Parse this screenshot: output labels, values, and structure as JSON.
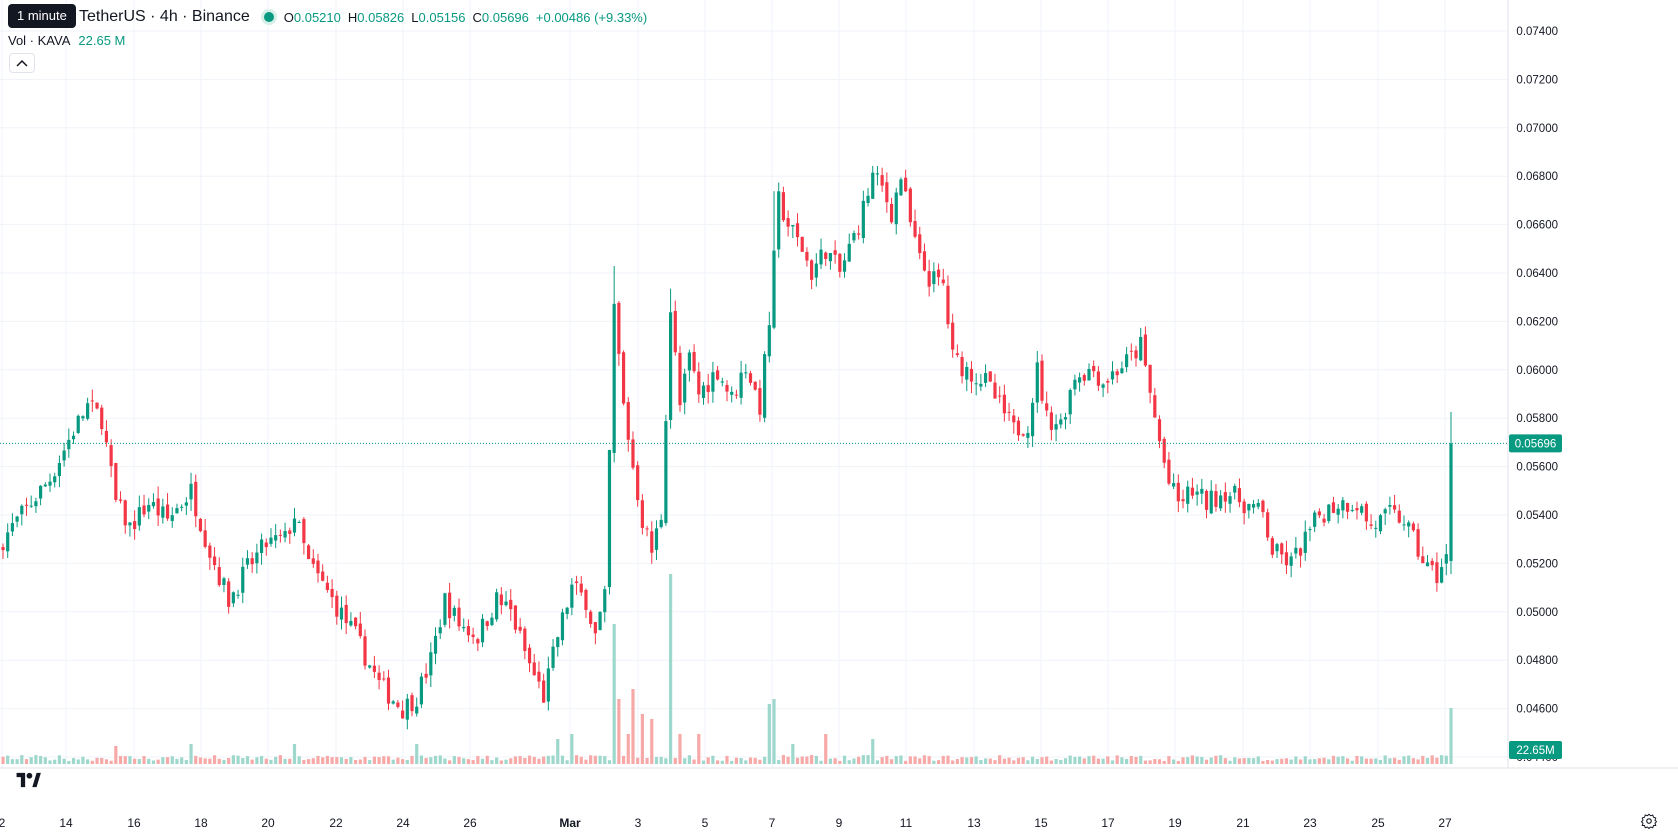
{
  "tooltip": "1 minute",
  "header": {
    "symbol": "TetherUS · 4h · Binance",
    "o_label": "O",
    "o": "0.05210",
    "h_label": "H",
    "h": "0.05826",
    "l_label": "L",
    "l": "0.05156",
    "c_label": "C",
    "c": "0.05696",
    "change": "+0.00486 (+9.33%)",
    "status_color": "#089981"
  },
  "volume_legend": {
    "label": "Vol · KAVA",
    "value": "22.65 M"
  },
  "colors": {
    "up": "#089981",
    "down": "#F23645",
    "up_vol": "#9ED7CC",
    "down_vol": "#F7A9A7",
    "grid": "#F0F3FA"
  },
  "chart_data": {
    "type": "candlestick",
    "interval": "4h",
    "price_axis": {
      "ticks": [
        "0.07400",
        "0.07200",
        "0.07000",
        "0.06800",
        "0.06600",
        "0.06400",
        "0.06200",
        "0.06000",
        "0.05800",
        "0.05600",
        "0.05400",
        "0.05200",
        "0.05000",
        "0.04800",
        "0.04600",
        "0.04400"
      ],
      "ylim": [
        0.0435,
        0.0741
      ],
      "last_price": "0.05696",
      "last_volume": "22.65M"
    },
    "x_axis": {
      "ticks": [
        "2",
        "14",
        "16",
        "18",
        "20",
        "22",
        "24",
        "26",
        "Mar",
        "3",
        "5",
        "7",
        "9",
        "11",
        "13",
        "15",
        "17",
        "19",
        "21",
        "23",
        "25",
        "27"
      ]
    },
    "price_path": [
      [
        0,
        0.053
      ],
      [
        6,
        0.0545
      ],
      [
        10,
        0.0555
      ],
      [
        15,
        0.0575
      ],
      [
        18,
        0.0585
      ],
      [
        21,
        0.058
      ],
      [
        24,
        0.0545
      ],
      [
        27,
        0.0535
      ],
      [
        31,
        0.0545
      ],
      [
        35,
        0.0538
      ],
      [
        40,
        0.055
      ],
      [
        44,
        0.0525
      ],
      [
        48,
        0.0505
      ],
      [
        52,
        0.0518
      ],
      [
        56,
        0.0528
      ],
      [
        60,
        0.053
      ],
      [
        62,
        0.054
      ],
      [
        65,
        0.052
      ],
      [
        70,
        0.0505
      ],
      [
        75,
        0.049
      ],
      [
        80,
        0.047
      ],
      [
        85,
        0.046
      ],
      [
        88,
        0.0465
      ],
      [
        91,
        0.048
      ],
      [
        94,
        0.0505
      ],
      [
        97,
        0.0495
      ],
      [
        101,
        0.049
      ],
      [
        105,
        0.0505
      ],
      [
        108,
        0.05
      ],
      [
        112,
        0.0478
      ],
      [
        115,
        0.0465
      ],
      [
        118,
        0.049
      ],
      [
        121,
        0.051
      ],
      [
        124,
        0.0505
      ],
      [
        126,
        0.049
      ],
      [
        128,
        0.0505
      ],
      [
        130,
        0.0625
      ],
      [
        132,
        0.0585
      ],
      [
        134,
        0.056
      ],
      [
        136,
        0.0538
      ],
      [
        138,
        0.0525
      ],
      [
        140,
        0.054
      ],
      [
        142,
        0.0625
      ],
      [
        144,
        0.0585
      ],
      [
        146,
        0.0605
      ],
      [
        148,
        0.059
      ],
      [
        152,
        0.06
      ],
      [
        155,
        0.0588
      ],
      [
        158,
        0.0602
      ],
      [
        161,
        0.0585
      ],
      [
        163,
        0.062
      ],
      [
        165,
        0.067
      ],
      [
        167,
        0.066
      ],
      [
        170,
        0.065
      ],
      [
        172,
        0.064
      ],
      [
        175,
        0.065
      ],
      [
        178,
        0.064
      ],
      [
        182,
        0.066
      ],
      [
        185,
        0.068
      ],
      [
        187,
        0.0675
      ],
      [
        189,
        0.0665
      ],
      [
        191,
        0.068
      ],
      [
        193,
        0.066
      ],
      [
        195,
        0.0645
      ],
      [
        197,
        0.0638
      ],
      [
        200,
        0.0635
      ],
      [
        202,
        0.0605
      ],
      [
        205,
        0.06
      ],
      [
        209,
        0.0595
      ],
      [
        212,
        0.0585
      ],
      [
        215,
        0.0575
      ],
      [
        218,
        0.0578
      ],
      [
        220,
        0.06
      ],
      [
        222,
        0.058
      ],
      [
        225,
        0.0578
      ],
      [
        228,
        0.0598
      ],
      [
        232,
        0.06
      ],
      [
        234,
        0.0595
      ],
      [
        237,
        0.06
      ],
      [
        240,
        0.0605
      ],
      [
        242,
        0.061
      ],
      [
        244,
        0.059
      ],
      [
        246,
        0.057
      ],
      [
        248,
        0.0553
      ],
      [
        250,
        0.0545
      ],
      [
        253,
        0.055
      ],
      [
        256,
        0.0545
      ],
      [
        260,
        0.055
      ],
      [
        264,
        0.0545
      ],
      [
        268,
        0.054
      ],
      [
        270,
        0.0525
      ],
      [
        274,
        0.052
      ],
      [
        277,
        0.053
      ],
      [
        280,
        0.054
      ],
      [
        284,
        0.0545
      ],
      [
        288,
        0.0545
      ],
      [
        291,
        0.0535
      ],
      [
        295,
        0.054
      ],
      [
        298,
        0.0538
      ],
      [
        301,
        0.0525
      ],
      [
        303,
        0.0518
      ],
      [
        305,
        0.0515
      ],
      [
        307,
        0.0522
      ],
      [
        308,
        0.057
      ]
    ],
    "last_candle": {
      "o": 0.0521,
      "h": 0.05826,
      "l": 0.05156,
      "c": 0.05696
    }
  }
}
